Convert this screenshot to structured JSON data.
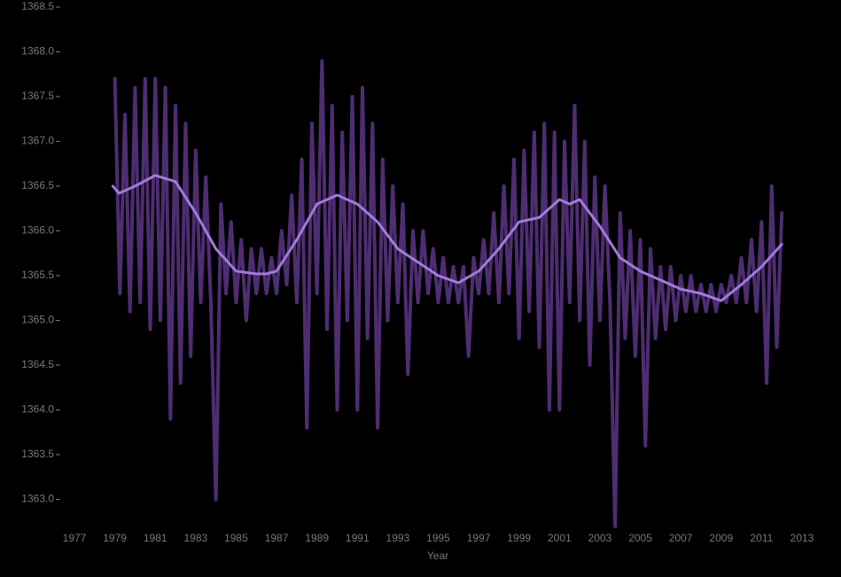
{
  "chart_data": {
    "type": "line",
    "x_label": "Year",
    "xlim": [
      1977,
      2013
    ],
    "ylim": [
      1362.7,
      1368.5
    ],
    "xticks": [
      1977,
      1979,
      1981,
      1983,
      1985,
      1987,
      1989,
      1991,
      1993,
      1995,
      1997,
      1999,
      2001,
      2003,
      2005,
      2007,
      2009,
      2011,
      2013
    ],
    "yticks": [
      {
        "value": 1363.0,
        "label": "1363.0"
      },
      {
        "value": 1363.5,
        "label": "1363.5"
      },
      {
        "value": 1364.0,
        "label": "1364.0"
      },
      {
        "value": 1364.5,
        "label": "1364.5"
      },
      {
        "value": 1365.0,
        "label": "1365.0"
      },
      {
        "value": 1365.5,
        "label": "1365.5"
      },
      {
        "value": 1366.0,
        "label": "1366.0"
      },
      {
        "value": 1366.5,
        "label": "1366.5"
      },
      {
        "value": 1367.0,
        "label": "1367.0"
      },
      {
        "value": 1367.5,
        "label": "1367.5"
      },
      {
        "value": 1368.0,
        "label": "1368.0"
      },
      {
        "value": 1368.5,
        "label": "1368.5"
      }
    ],
    "grid": false,
    "series": [
      {
        "color": "#4e2d72",
        "line_width": 4,
        "x": [
          1979.0,
          1979.25,
          1979.5,
          1979.75,
          1980.0,
          1980.25,
          1980.5,
          1980.75,
          1981.0,
          1981.25,
          1981.5,
          1981.75,
          1982.0,
          1982.25,
          1982.5,
          1982.75,
          1983.0,
          1983.25,
          1983.5,
          1983.75,
          1984.0,
          1984.25,
          1984.5,
          1984.75,
          1985.0,
          1985.25,
          1985.5,
          1985.75,
          1986.0,
          1986.25,
          1986.5,
          1986.75,
          1987.0,
          1987.25,
          1987.5,
          1987.75,
          1988.0,
          1988.25,
          1988.5,
          1988.75,
          1989.0,
          1989.25,
          1989.5,
          1989.75,
          1990.0,
          1990.25,
          1990.5,
          1990.75,
          1991.0,
          1991.25,
          1991.5,
          1991.75,
          1992.0,
          1992.25,
          1992.5,
          1992.75,
          1993.0,
          1993.25,
          1993.5,
          1993.75,
          1994.0,
          1994.25,
          1994.5,
          1994.75,
          1995.0,
          1995.25,
          1995.5,
          1995.75,
          1996.0,
          1996.25,
          1996.5,
          1996.75,
          1997.0,
          1997.25,
          1997.5,
          1997.75,
          1998.0,
          1998.25,
          1998.5,
          1998.75,
          1999.0,
          1999.25,
          1999.5,
          1999.75,
          2000.0,
          2000.25,
          2000.5,
          2000.75,
          2001.0,
          2001.25,
          2001.5,
          2001.75,
          2002.0,
          2002.25,
          2002.5,
          2002.75,
          2003.0,
          2003.25,
          2003.5,
          2003.75,
          2004.0,
          2004.25,
          2004.5,
          2004.75,
          2005.0,
          2005.25,
          2005.5,
          2005.75,
          2006.0,
          2006.25,
          2006.5,
          2006.75,
          2007.0,
          2007.25,
          2007.5,
          2007.75,
          2008.0,
          2008.25,
          2008.5,
          2008.75,
          2009.0,
          2009.25,
          2009.5,
          2009.75,
          2010.0,
          2010.25,
          2010.5,
          2010.75,
          2011.0,
          2011.25,
          2011.5,
          2011.75,
          2012.0
        ],
        "values": [
          1367.7,
          1365.3,
          1367.3,
          1365.1,
          1367.6,
          1365.2,
          1367.7,
          1364.9,
          1367.7,
          1365.0,
          1367.6,
          1363.9,
          1367.4,
          1364.3,
          1367.2,
          1364.6,
          1366.9,
          1365.2,
          1366.6,
          1365.2,
          1363.0,
          1366.3,
          1365.3,
          1366.1,
          1365.2,
          1365.9,
          1365.0,
          1365.8,
          1365.3,
          1365.8,
          1365.3,
          1365.7,
          1365.3,
          1366.0,
          1365.4,
          1366.4,
          1365.2,
          1366.8,
          1363.8,
          1367.2,
          1365.3,
          1367.9,
          1364.9,
          1367.4,
          1364.0,
          1367.1,
          1365.0,
          1367.5,
          1364.0,
          1367.6,
          1364.8,
          1367.2,
          1363.8,
          1366.8,
          1365.0,
          1366.5,
          1365.2,
          1366.3,
          1364.4,
          1366.0,
          1365.2,
          1366.0,
          1365.3,
          1365.8,
          1365.2,
          1365.7,
          1365.2,
          1365.6,
          1365.2,
          1365.6,
          1364.6,
          1365.7,
          1365.3,
          1365.9,
          1365.3,
          1366.2,
          1365.2,
          1366.5,
          1365.3,
          1366.8,
          1364.8,
          1366.9,
          1365.1,
          1367.1,
          1364.7,
          1367.2,
          1364.0,
          1367.1,
          1364.0,
          1367.0,
          1365.2,
          1367.4,
          1365.0,
          1367.0,
          1364.5,
          1366.6,
          1365.0,
          1366.5,
          1365.2,
          1362.7,
          1366.2,
          1364.8,
          1366.0,
          1364.6,
          1365.9,
          1363.6,
          1365.8,
          1364.8,
          1365.6,
          1364.9,
          1365.6,
          1365.0,
          1365.5,
          1365.1,
          1365.5,
          1365.1,
          1365.4,
          1365.1,
          1365.4,
          1365.1,
          1365.4,
          1365.2,
          1365.5,
          1365.2,
          1365.7,
          1365.2,
          1365.9,
          1365.1,
          1366.1,
          1364.3,
          1366.5,
          1364.7,
          1366.2
        ]
      },
      {
        "color": "#a478dc",
        "line_width": 3,
        "x": [
          1978.9,
          1979.2,
          1980.0,
          1981.0,
          1982.0,
          1983.0,
          1984.0,
          1985.0,
          1986.0,
          1986.5,
          1987.0,
          1988.0,
          1989.0,
          1990.0,
          1991.0,
          1992.0,
          1993.0,
          1994.0,
          1995.0,
          1996.0,
          1997.0,
          1998.0,
          1999.0,
          2000.0,
          2001.0,
          2001.5,
          2002.0,
          2003.0,
          2004.0,
          2005.0,
          2006.0,
          2007.0,
          2008.0,
          2009.0,
          2010.0,
          2011.0,
          2012.0
        ],
        "values": [
          1366.5,
          1366.42,
          1366.5,
          1366.62,
          1366.55,
          1366.2,
          1365.8,
          1365.55,
          1365.52,
          1365.52,
          1365.55,
          1365.9,
          1366.3,
          1366.4,
          1366.3,
          1366.1,
          1365.8,
          1365.65,
          1365.5,
          1365.42,
          1365.55,
          1365.8,
          1366.1,
          1366.15,
          1366.35,
          1366.3,
          1366.35,
          1366.05,
          1365.7,
          1365.55,
          1365.45,
          1365.35,
          1365.3,
          1365.22,
          1365.4,
          1365.6,
          1365.85
        ]
      }
    ]
  }
}
